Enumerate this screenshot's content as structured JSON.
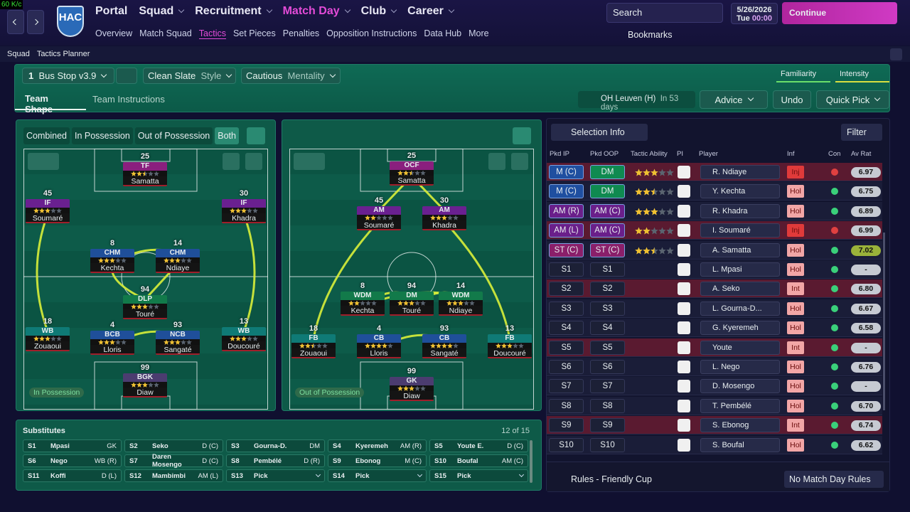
{
  "fps": "60 K/c",
  "header": {
    "nav": [
      "Portal",
      "Squad",
      "Recruitment",
      "Match Day",
      "Club",
      "Career"
    ],
    "nav_active": 3,
    "subnav": [
      "Overview",
      "Match Squad",
      "Tactics",
      "Set Pieces",
      "Penalties",
      "Opposition Instructions",
      "Data Hub",
      "More"
    ],
    "subnav_active": 2,
    "club": "HAC",
    "search": "Search",
    "date": "5/26/2026",
    "weekday": "Tue",
    "time": "00:00",
    "continue": "Continue",
    "bookmarks": "Bookmarks"
  },
  "breadcrumb": [
    "Squad",
    "Tactics Planner"
  ],
  "tactic": {
    "slot": "1",
    "name": "Bus Stop v3.9",
    "style": "Clean Slate",
    "style_label": "Style",
    "mentality": "Cautious",
    "mentality_label": "Mentality",
    "familiarity": "Familiarity",
    "intensity": "Intensity"
  },
  "tabs": [
    "Team Shape",
    "Team Instructions"
  ],
  "next_match": {
    "opponent": "OH Leuven (H)",
    "when": "In 53 days"
  },
  "buttons": {
    "advice": "Advice",
    "undo": "Undo",
    "quick_pick": "Quick Pick"
  },
  "view_tabs": [
    "Combined",
    "In Possession",
    "Out of Possession",
    "Both"
  ],
  "view_active": 3,
  "pitches": [
    {
      "label": "In Possession",
      "players": [
        {
          "number": "25",
          "role": "TF",
          "name": "Samatta",
          "color": "#8a1f7e",
          "stars": 2.5
        },
        {
          "number": "45",
          "role": "IF",
          "name": "Soumaré",
          "color": "#6a2090",
          "stars": 3
        },
        {
          "number": "30",
          "role": "IF",
          "name": "Khadra",
          "color": "#6a2090",
          "stars": 3
        },
        {
          "number": "8",
          "role": "CHM",
          "name": "Kechta",
          "color": "#1f4f9a",
          "stars": 3
        },
        {
          "number": "14",
          "role": "CHM",
          "name": "Ndiaye",
          "color": "#1f4f9a",
          "stars": 3
        },
        {
          "number": "94",
          "role": "DLP",
          "name": "Touré",
          "color": "#127a4a",
          "stars": 3
        },
        {
          "number": "18",
          "role": "WB",
          "name": "Zouaoui",
          "color": "#0f7a76",
          "stars": 3
        },
        {
          "number": "4",
          "role": "BCB",
          "name": "Lloris",
          "color": "#1f4f9a",
          "stars": 3
        },
        {
          "number": "93",
          "role": "NCB",
          "name": "Sangaté",
          "color": "#1f4f9a",
          "stars": 3
        },
        {
          "number": "13",
          "role": "WB",
          "name": "Doucouré",
          "color": "#0f7a76",
          "stars": 3
        },
        {
          "number": "99",
          "role": "BGK",
          "name": "Diaw",
          "color": "#4b3c70",
          "stars": 3
        }
      ]
    },
    {
      "label": "Out of Possession",
      "players": [
        {
          "number": "25",
          "role": "OCF",
          "name": "Samatta",
          "color": "#8a1f7e",
          "stars": 2.5
        },
        {
          "number": "45",
          "role": "AM",
          "name": "Soumaré",
          "color": "#6a2090",
          "stars": 2
        },
        {
          "number": "30",
          "role": "AM",
          "name": "Khadra",
          "color": "#6a2090",
          "stars": 3
        },
        {
          "number": "8",
          "role": "WDM",
          "name": "Kechta",
          "color": "#127a4a",
          "stars": 2
        },
        {
          "number": "94",
          "role": "DM",
          "name": "Touré",
          "color": "#127a4a",
          "stars": 3
        },
        {
          "number": "14",
          "role": "WDM",
          "name": "Ndiaye",
          "color": "#127a4a",
          "stars": 3
        },
        {
          "number": "18",
          "role": "FB",
          "name": "Zouaoui",
          "color": "#0f7a76",
          "stars": 2.5
        },
        {
          "number": "4",
          "role": "CB",
          "name": "Lloris",
          "color": "#1f4f9a",
          "stars": 4
        },
        {
          "number": "93",
          "role": "CB",
          "name": "Sangaté",
          "color": "#1f4f9a",
          "stars": 4
        },
        {
          "number": "13",
          "role": "FB",
          "name": "Doucouré",
          "color": "#0f7a76",
          "stars": 3
        },
        {
          "number": "99",
          "role": "GK",
          "name": "Diaw",
          "color": "#4b3c70",
          "stars": 3
        }
      ]
    }
  ],
  "substitutes": {
    "title": "Substitutes",
    "count": "12 of 15",
    "rows": [
      [
        "S1",
        "Mpasi",
        "GK"
      ],
      [
        "S2",
        "Seko",
        "D (C)"
      ],
      [
        "S3",
        "Gourna-D.",
        "DM"
      ],
      [
        "S4",
        "Kyeremeh",
        "AM (R)"
      ],
      [
        "S5",
        "Youte E.",
        "D (C)"
      ],
      [
        "S6",
        "Nego",
        "WB (R)"
      ],
      [
        "S7",
        "Daren Mosengo",
        "D (C)"
      ],
      [
        "S8",
        "Pembélé",
        "D (R)"
      ],
      [
        "S9",
        "Ebonog",
        "M (C)"
      ],
      [
        "S10",
        "Boufal",
        "AM (C)"
      ],
      [
        "S11",
        "Koffi",
        "D (L)"
      ],
      [
        "S12",
        "Mambimbi",
        "AM (L)"
      ],
      [
        "S13",
        "Pick"
      ],
      [
        "S14",
        "Pick"
      ],
      [
        "S15",
        "Pick"
      ]
    ]
  },
  "selection": {
    "title": "Selection Info",
    "filter": "Filter",
    "columns": [
      "Pkd IP",
      "Pkd OOP",
      "Tactic Ability",
      "PI",
      "Player",
      "Inf",
      "Con",
      "Av Rat"
    ],
    "rows": [
      {
        "ip": "M (C)",
        "oop": "DM",
        "ip_color": "#1f4fa0",
        "oop_color": "#0f8a50",
        "ability": 3,
        "player": "R. Ndiaye",
        "inf": "Inj",
        "inf_color": "#e03a3a",
        "con_color": "#e04040",
        "rating": "6.97",
        "highlight": true
      },
      {
        "ip": "M (C)",
        "oop": "DM",
        "ip_color": "#1f4fa0",
        "oop_color": "#0f8a50",
        "ability": 2.5,
        "player": "Y. Kechta",
        "inf": "Hol",
        "inf_color": "#f2a6a6",
        "con_color": "#3ad07a",
        "rating": "6.75"
      },
      {
        "ip": "AM (R)",
        "oop": "AM (C)",
        "ip_color": "#6a1f8a",
        "oop_color": "#6a1f8a",
        "ability": 3,
        "player": "R. Khadra",
        "inf": "Hol",
        "inf_color": "#f2a6a6",
        "con_color": "#3ad07a",
        "rating": "6.89"
      },
      {
        "ip": "AM (L)",
        "oop": "AM (C)",
        "ip_color": "#6a1f8a",
        "oop_color": "#6a1f8a",
        "ability": 2,
        "player": "I. Soumaré",
        "inf": "Inj",
        "inf_color": "#e03a3a",
        "con_color": "#e04040",
        "rating": "6.99",
        "highlight": true
      },
      {
        "ip": "ST (C)",
        "oop": "ST (C)",
        "ip_color": "#8a1f6a",
        "oop_color": "#8a1f6a",
        "ability": 2.5,
        "player": "A. Samatta",
        "inf": "Hol",
        "inf_color": "#f2a6a6",
        "con_color": "#3ad07a",
        "rating": "7.02",
        "rating_color": "#9ab23a"
      },
      {
        "ip": "S1",
        "oop": "S1",
        "player": "L. Mpasi",
        "inf": "Hol",
        "inf_color": "#f2a6a6",
        "con_color": "#3ad07a",
        "rating": "-"
      },
      {
        "ip": "S2",
        "oop": "S2",
        "player": "A. Seko",
        "inf": "Int",
        "inf_color": "#f2a6a6",
        "con_color": "#3ad07a",
        "rating": "6.80",
        "highlight": true
      },
      {
        "ip": "S3",
        "oop": "S3",
        "player": "L. Gourna-D...",
        "inf": "Hol",
        "inf_color": "#f2a6a6",
        "con_color": "#3ad07a",
        "rating": "6.67"
      },
      {
        "ip": "S4",
        "oop": "S4",
        "player": "G. Kyeremeh",
        "inf": "Hol",
        "inf_color": "#f2a6a6",
        "con_color": "#3ad07a",
        "rating": "6.58"
      },
      {
        "ip": "S5",
        "oop": "S5",
        "player": "Youte",
        "inf": "Int",
        "inf_color": "#f2a6a6",
        "con_color": "#3ad07a",
        "rating": "-",
        "highlight": true
      },
      {
        "ip": "S6",
        "oop": "S6",
        "player": "L. Nego",
        "inf": "Hol",
        "inf_color": "#f2a6a6",
        "con_color": "#3ad07a",
        "rating": "6.76"
      },
      {
        "ip": "S7",
        "oop": "S7",
        "player": "D. Mosengo",
        "inf": "Hol",
        "inf_color": "#f2a6a6",
        "con_color": "#3ad07a",
        "rating": "-"
      },
      {
        "ip": "S8",
        "oop": "S8",
        "player": "T. Pembélé",
        "inf": "Hol",
        "inf_color": "#f2a6a6",
        "con_color": "#3ad07a",
        "rating": "6.70"
      },
      {
        "ip": "S9",
        "oop": "S9",
        "player": "S. Ebonog",
        "inf": "Int",
        "inf_color": "#f2a6a6",
        "con_color": "#3ad07a",
        "rating": "6.74",
        "highlight": true
      },
      {
        "ip": "S10",
        "oop": "S10",
        "player": "S. Boufal",
        "inf": "Hol",
        "inf_color": "#f2a6a6",
        "con_color": "#3ad07a",
        "rating": "6.62"
      }
    ],
    "rules": "Rules - Friendly Cup",
    "no_rules": "No Match Day Rules"
  }
}
